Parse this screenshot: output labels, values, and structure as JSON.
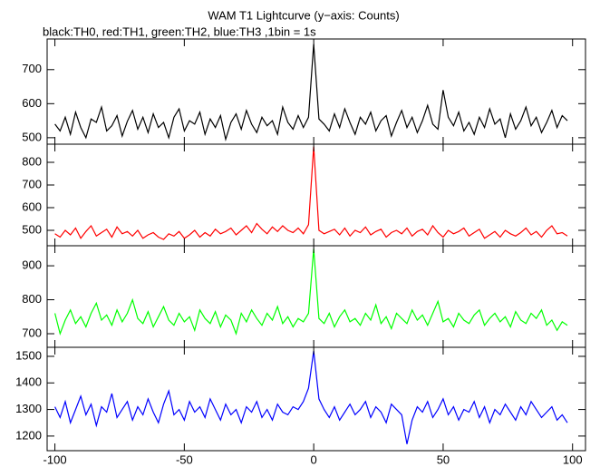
{
  "chart_data": [
    {
      "type": "line",
      "title": "WAM T1 Lightcurve (y−axis: Counts)",
      "subtitle": "black:TH0, red:TH1, green:TH2, blue:TH3 ,1bin = 1s",
      "color": "#000000",
      "xlim": [
        -103,
        105
      ],
      "xticks": [
        -100,
        -50,
        0,
        50,
        100
      ],
      "ylim": [
        481,
        790
      ],
      "yticks": [
        500,
        600,
        700
      ],
      "x": [
        -100,
        -98,
        -96,
        -94,
        -92,
        -90,
        -88,
        -86,
        -84,
        -82,
        -80,
        -78,
        -76,
        -74,
        -72,
        -70,
        -68,
        -66,
        -64,
        -62,
        -60,
        -58,
        -56,
        -54,
        -52,
        -50,
        -48,
        -46,
        -44,
        -42,
        -40,
        -38,
        -36,
        -34,
        -32,
        -30,
        -28,
        -26,
        -24,
        -22,
        -20,
        -18,
        -16,
        -14,
        -12,
        -10,
        -8,
        -6,
        -4,
        -2,
        0,
        2,
        4,
        6,
        8,
        10,
        12,
        14,
        16,
        18,
        20,
        22,
        24,
        26,
        28,
        30,
        32,
        34,
        36,
        38,
        40,
        42,
        44,
        46,
        48,
        50,
        52,
        54,
        56,
        58,
        60,
        62,
        64,
        66,
        68,
        70,
        72,
        74,
        76,
        78,
        80,
        82,
        84,
        86,
        88,
        90,
        92,
        94,
        96,
        98
      ],
      "values": [
        540,
        520,
        560,
        510,
        575,
        530,
        500,
        555,
        545,
        590,
        520,
        535,
        565,
        505,
        548,
        580,
        525,
        560,
        515,
        570,
        530,
        545,
        500,
        560,
        585,
        520,
        550,
        540,
        575,
        510,
        555,
        530,
        565,
        495,
        545,
        570,
        525,
        580,
        540,
        515,
        560,
        535,
        550,
        510,
        590,
        545,
        525,
        565,
        530,
        560,
        775,
        555,
        540,
        520,
        570,
        530,
        585,
        545,
        510,
        560,
        540,
        575,
        520,
        550,
        565,
        505,
        545,
        580,
        530,
        560,
        515,
        550,
        595,
        540,
        525,
        640,
        560,
        535,
        575,
        520,
        545,
        510,
        560,
        530,
        585,
        540,
        555,
        500,
        570,
        525,
        550,
        590,
        535,
        560,
        515,
        545,
        580,
        530,
        565,
        550
      ]
    },
    {
      "type": "line",
      "color": "#ff0000",
      "xlim": [
        -103,
        105
      ],
      "xticks": [
        -100,
        -50,
        0,
        50,
        100
      ],
      "ylim": [
        432,
        880
      ],
      "yticks": [
        500,
        600,
        700,
        800
      ],
      "x": [
        -100,
        -98,
        -96,
        -94,
        -92,
        -90,
        -88,
        -86,
        -84,
        -82,
        -80,
        -78,
        -76,
        -74,
        -72,
        -70,
        -68,
        -66,
        -64,
        -62,
        -60,
        -58,
        -56,
        -54,
        -52,
        -50,
        -48,
        -46,
        -44,
        -42,
        -40,
        -38,
        -36,
        -34,
        -32,
        -30,
        -28,
        -26,
        -24,
        -22,
        -20,
        -18,
        -16,
        -14,
        -12,
        -10,
        -8,
        -6,
        -4,
        -2,
        0,
        2,
        4,
        6,
        8,
        10,
        12,
        14,
        16,
        18,
        20,
        22,
        24,
        26,
        28,
        30,
        32,
        34,
        36,
        38,
        40,
        42,
        44,
        46,
        48,
        50,
        52,
        54,
        56,
        58,
        60,
        62,
        64,
        66,
        68,
        70,
        72,
        74,
        76,
        78,
        80,
        82,
        84,
        86,
        88,
        90,
        92,
        94,
        96,
        98
      ],
      "values": [
        485,
        470,
        500,
        480,
        510,
        465,
        495,
        520,
        475,
        490,
        505,
        470,
        515,
        485,
        495,
        475,
        500,
        465,
        480,
        490,
        470,
        460,
        485,
        475,
        495,
        465,
        480,
        500,
        470,
        490,
        475,
        505,
        485,
        495,
        510,
        480,
        500,
        520,
        490,
        530,
        505,
        485,
        515,
        495,
        520,
        500,
        490,
        510,
        485,
        525,
        870,
        500,
        485,
        495,
        505,
        480,
        510,
        475,
        500,
        490,
        515,
        480,
        495,
        505,
        470,
        490,
        500,
        485,
        510,
        475,
        495,
        505,
        480,
        520,
        490,
        470,
        500,
        485,
        495,
        510,
        475,
        490,
        505,
        465,
        480,
        495,
        470,
        500,
        485,
        475,
        490,
        510,
        480,
        495,
        470,
        500,
        520,
        485,
        490,
        475
      ]
    },
    {
      "type": "line",
      "color": "#00ff00",
      "xlim": [
        -103,
        105
      ],
      "xticks": [
        -100,
        -50,
        0,
        50,
        100
      ],
      "ylim": [
        660,
        959
      ],
      "yticks": [
        700,
        800,
        900
      ],
      "x": [
        -100,
        -98,
        -96,
        -94,
        -92,
        -90,
        -88,
        -86,
        -84,
        -82,
        -80,
        -78,
        -76,
        -74,
        -72,
        -70,
        -68,
        -66,
        -64,
        -62,
        -60,
        -58,
        -56,
        -54,
        -52,
        -50,
        -48,
        -46,
        -44,
        -42,
        -40,
        -38,
        -36,
        -34,
        -32,
        -30,
        -28,
        -26,
        -24,
        -22,
        -20,
        -18,
        -16,
        -14,
        -12,
        -10,
        -8,
        -6,
        -4,
        -2,
        0,
        2,
        4,
        6,
        8,
        10,
        12,
        14,
        16,
        18,
        20,
        22,
        24,
        26,
        28,
        30,
        32,
        34,
        36,
        38,
        40,
        42,
        44,
        46,
        48,
        50,
        52,
        54,
        56,
        58,
        60,
        62,
        64,
        66,
        68,
        70,
        72,
        74,
        76,
        78,
        80,
        82,
        84,
        86,
        88,
        90,
        92,
        94,
        96,
        98
      ],
      "values": [
        760,
        700,
        740,
        770,
        730,
        750,
        720,
        760,
        790,
        740,
        755,
        725,
        770,
        735,
        760,
        800,
        745,
        730,
        765,
        720,
        750,
        780,
        740,
        725,
        760,
        735,
        750,
        710,
        770,
        745,
        730,
        765,
        720,
        755,
        740,
        700,
        760,
        735,
        770,
        745,
        725,
        760,
        740,
        780,
        730,
        750,
        720,
        745,
        735,
        760,
        950,
        745,
        730,
        760,
        720,
        750,
        770,
        735,
        745,
        725,
        760,
        740,
        785,
        730,
        750,
        715,
        760,
        745,
        730,
        770,
        740,
        755,
        725,
        760,
        795,
        735,
        745,
        720,
        760,
        740,
        730,
        755,
        770,
        725,
        745,
        760,
        735,
        750,
        720,
        765,
        740,
        730,
        760,
        745,
        770,
        725,
        740,
        710,
        735,
        725
      ]
    },
    {
      "type": "line",
      "color": "#0000ff",
      "xlim": [
        -103,
        105
      ],
      "xticks": [
        -100,
        -50,
        0,
        50,
        100
      ],
      "ylim": [
        1145,
        1534
      ],
      "yticks": [
        1200,
        1300,
        1400,
        1500
      ],
      "x": [
        -100,
        -98,
        -96,
        -94,
        -92,
        -90,
        -88,
        -86,
        -84,
        -82,
        -80,
        -78,
        -76,
        -74,
        -72,
        -70,
        -68,
        -66,
        -64,
        -62,
        -60,
        -58,
        -56,
        -54,
        -52,
        -50,
        -48,
        -46,
        -44,
        -42,
        -40,
        -38,
        -36,
        -34,
        -32,
        -30,
        -28,
        -26,
        -24,
        -22,
        -20,
        -18,
        -16,
        -14,
        -12,
        -10,
        -8,
        -6,
        -4,
        -2,
        0,
        2,
        4,
        6,
        8,
        10,
        12,
        14,
        16,
        18,
        20,
        22,
        24,
        26,
        28,
        30,
        32,
        34,
        36,
        38,
        40,
        42,
        44,
        46,
        48,
        50,
        52,
        54,
        56,
        58,
        60,
        62,
        64,
        66,
        68,
        70,
        72,
        74,
        76,
        78,
        80,
        82,
        84,
        86,
        88,
        90,
        92,
        94,
        96,
        98
      ],
      "values": [
        1310,
        1270,
        1330,
        1250,
        1300,
        1350,
        1280,
        1320,
        1240,
        1310,
        1290,
        1360,
        1270,
        1300,
        1330,
        1260,
        1310,
        1280,
        1340,
        1290,
        1250,
        1320,
        1370,
        1280,
        1300,
        1260,
        1330,
        1290,
        1310,
        1270,
        1340,
        1300,
        1260,
        1320,
        1280,
        1300,
        1250,
        1310,
        1290,
        1330,
        1270,
        1300,
        1260,
        1320,
        1290,
        1280,
        1310,
        1300,
        1330,
        1380,
        1520,
        1340,
        1300,
        1270,
        1310,
        1260,
        1290,
        1320,
        1280,
        1300,
        1330,
        1270,
        1310,
        1290,
        1250,
        1320,
        1300,
        1280,
        1170,
        1260,
        1310,
        1290,
        1330,
        1270,
        1300,
        1340,
        1280,
        1310,
        1260,
        1300,
        1290,
        1330,
        1270,
        1310,
        1250,
        1300,
        1280,
        1320,
        1290,
        1260,
        1310,
        1280,
        1330,
        1300,
        1270,
        1290,
        1310,
        1260,
        1280,
        1250
      ]
    }
  ]
}
